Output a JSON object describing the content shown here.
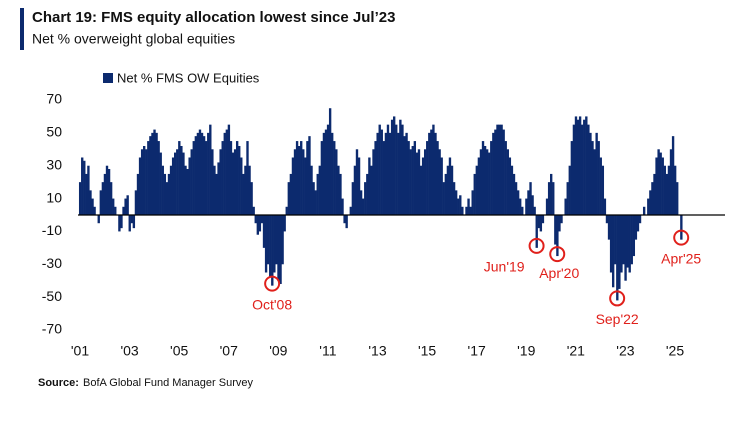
{
  "chart_data": {
    "type": "bar",
    "title": "Chart 19: FMS equity allocation lowest since Jul’23",
    "subtitle": "Net % overweight global equities",
    "source_label": "Source:",
    "source": "BofA Global Fund Manager Survey",
    "series": [
      {
        "name": "Net % FMS OW Equities",
        "color": "#0c2a6e",
        "values": [
          20,
          35,
          33,
          25,
          30,
          15,
          10,
          5,
          0,
          -5,
          15,
          20,
          25,
          30,
          28,
          20,
          10,
          5,
          0,
          -10,
          -8,
          5,
          10,
          12,
          -10,
          -5,
          -8,
          15,
          25,
          35,
          40,
          42,
          40,
          45,
          48,
          50,
          52,
          50,
          45,
          38,
          30,
          25,
          20,
          25,
          30,
          35,
          38,
          40,
          45,
          42,
          38,
          30,
          28,
          35,
          40,
          45,
          48,
          50,
          52,
          50,
          48,
          45,
          50,
          55,
          40,
          30,
          25,
          32,
          40,
          45,
          50,
          52,
          55,
          45,
          38,
          40,
          45,
          42,
          35,
          25,
          30,
          45,
          30,
          20,
          5,
          -5,
          -12,
          -10,
          -5,
          -20,
          -35,
          -30,
          -38,
          -43,
          -35,
          -30,
          -40,
          -42,
          -30,
          -10,
          5,
          20,
          25,
          35,
          40,
          45,
          42,
          45,
          40,
          35,
          45,
          48,
          30,
          20,
          15,
          25,
          30,
          45,
          50,
          52,
          55,
          65,
          50,
          45,
          40,
          30,
          25,
          10,
          -5,
          -8,
          0,
          5,
          20,
          30,
          40,
          35,
          15,
          10,
          20,
          25,
          35,
          30,
          40,
          45,
          50,
          55,
          52,
          45,
          50,
          55,
          50,
          58,
          60,
          55,
          50,
          58,
          55,
          48,
          50,
          45,
          40,
          42,
          45,
          38,
          40,
          30,
          35,
          40,
          45,
          50,
          52,
          55,
          50,
          45,
          40,
          35,
          20,
          25,
          30,
          35,
          30,
          20,
          15,
          10,
          12,
          5,
          0,
          5,
          10,
          5,
          15,
          25,
          30,
          35,
          40,
          45,
          42,
          40,
          38,
          45,
          50,
          52,
          55,
          55,
          55,
          52,
          45,
          40,
          35,
          30,
          25,
          20,
          15,
          10,
          5,
          0,
          10,
          15,
          20,
          12,
          5,
          -20,
          -8,
          -10,
          -5,
          0,
          10,
          20,
          25,
          20,
          -18,
          -25,
          -10,
          -5,
          0,
          10,
          20,
          30,
          45,
          55,
          60,
          58,
          60,
          55,
          58,
          60,
          55,
          50,
          45,
          40,
          50,
          45,
          35,
          30,
          10,
          -5,
          -15,
          -35,
          -44,
          -30,
          -52,
          -45,
          -35,
          -30,
          -40,
          -32,
          -35,
          -30,
          -25,
          -15,
          -10,
          -5,
          0,
          5,
          0,
          10,
          15,
          20,
          25,
          35,
          40,
          38,
          35,
          30,
          25,
          30,
          40,
          48,
          30,
          20,
          0,
          -15
        ]
      }
    ],
    "categories": [
      "'01",
      null,
      null,
      null,
      null,
      null,
      null,
      null,
      null,
      null,
      null,
      null,
      null,
      null,
      null,
      null,
      null,
      null,
      null,
      null,
      null,
      null,
      null,
      null,
      "'03",
      null,
      null,
      null,
      null,
      null,
      null,
      null,
      null,
      null,
      null,
      null,
      null,
      null,
      null,
      null,
      null,
      null,
      null,
      null,
      null,
      null,
      null,
      null,
      "'05",
      null,
      null,
      null,
      null,
      null,
      null,
      null,
      null,
      null,
      null,
      null,
      null,
      null,
      null,
      null,
      null,
      null,
      null,
      null,
      null,
      null,
      null,
      null,
      "'07",
      null,
      null,
      null,
      null,
      null,
      null,
      null,
      null,
      null,
      null,
      null,
      null,
      null,
      null,
      null,
      null,
      null,
      null,
      null,
      null,
      null,
      null,
      null,
      "'09",
      null,
      null,
      null,
      null,
      null,
      null,
      null,
      null,
      null,
      null,
      null,
      null,
      null,
      null,
      null,
      null,
      null,
      null,
      null,
      null,
      null,
      null,
      null,
      "'11",
      null,
      null,
      null,
      null,
      null,
      null,
      null,
      null,
      null,
      null,
      null,
      null,
      null,
      null,
      null,
      null,
      null,
      null,
      null,
      null,
      null,
      null,
      null,
      "'13",
      null,
      null,
      null,
      null,
      null,
      null,
      null,
      null,
      null,
      null,
      null,
      null,
      null,
      null,
      null,
      null,
      null,
      null,
      null,
      null,
      null,
      null,
      null,
      "'15",
      null,
      null,
      null,
      null,
      null,
      null,
      null,
      null,
      null,
      null,
      null,
      null,
      null,
      null,
      null,
      null,
      null,
      null,
      null,
      null,
      null,
      null,
      null,
      "'17",
      null,
      null,
      null,
      null,
      null,
      null,
      null,
      null,
      null,
      null,
      null,
      null,
      null,
      null,
      null,
      null,
      null,
      null,
      null,
      null,
      null,
      null,
      null,
      "'19",
      null,
      null,
      null,
      null,
      null,
      null,
      null,
      null,
      null,
      null,
      null,
      null,
      null,
      null,
      null,
      null,
      null,
      null,
      null,
      null,
      null,
      null,
      null,
      "'21",
      null,
      null,
      null,
      null,
      null,
      null,
      null,
      null,
      null,
      null,
      null,
      null,
      null,
      null,
      null,
      null,
      null,
      null,
      null,
      null,
      null,
      null,
      null,
      "'23",
      null,
      null,
      null,
      null,
      null,
      null,
      null,
      null,
      null,
      null,
      null,
      null,
      null,
      null,
      null,
      null,
      null,
      null,
      null,
      null,
      null,
      null,
      null,
      "'25",
      null,
      null,
      null
    ],
    "ylim": [
      -70,
      70
    ],
    "yticks": [
      70,
      50,
      30,
      10,
      -10,
      -30,
      -50,
      -70
    ],
    "legend": "top-left",
    "annotations": [
      {
        "label": "Oct'08",
        "index": 93
      },
      {
        "label": "Jun'19",
        "index": 221
      },
      {
        "label": "Apr'20",
        "index": 231
      },
      {
        "label": "Sep'22",
        "index": 260
      },
      {
        "label": "Apr'25",
        "index": 291
      }
    ],
    "annotation_color": "#e0201b"
  }
}
